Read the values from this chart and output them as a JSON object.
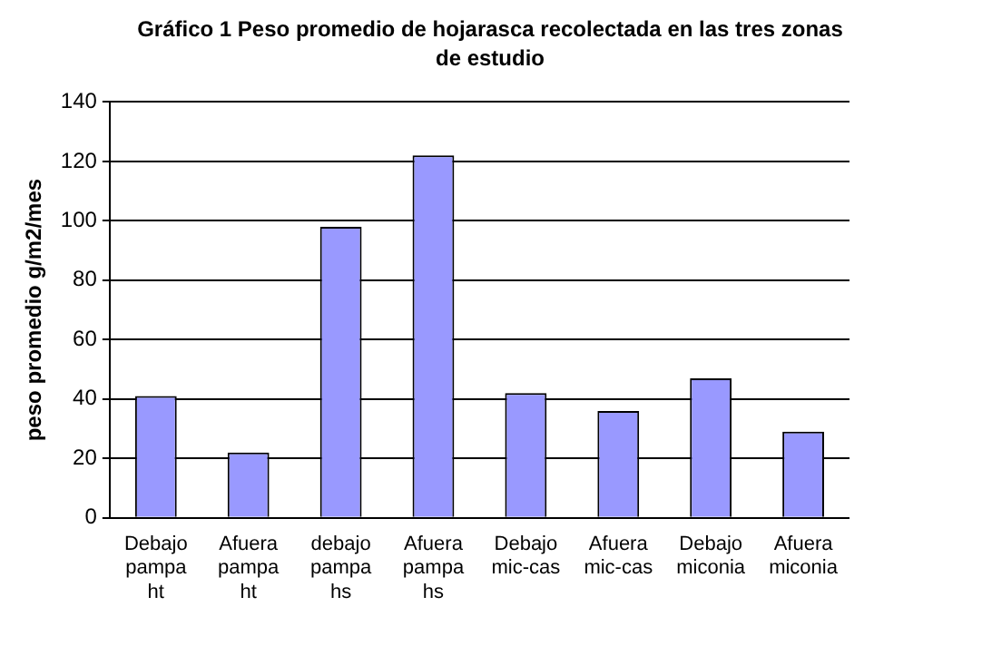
{
  "chart_data": {
    "type": "bar",
    "title": "Gráfico 1 Peso promedio de hojarasca recolectada en las tres zonas de estudio",
    "ylabel": "peso promedio g/m2/mes",
    "categories": [
      "Debajo pampa ht",
      "Afuera pampa ht",
      "debajo pampa hs",
      "Afuera pampa hs",
      "Debajo mic-cas",
      "Afuera mic-cas",
      "Debajo miconia",
      "Afuera miconia"
    ],
    "values": [
      41,
      22,
      98,
      122,
      42,
      36,
      47,
      29
    ],
    "color": "#9999ff",
    "ylim": [
      0,
      140
    ],
    "yticks": [
      0,
      20,
      40,
      60,
      80,
      100,
      120,
      140
    ],
    "grid": "y",
    "legend": false
  }
}
